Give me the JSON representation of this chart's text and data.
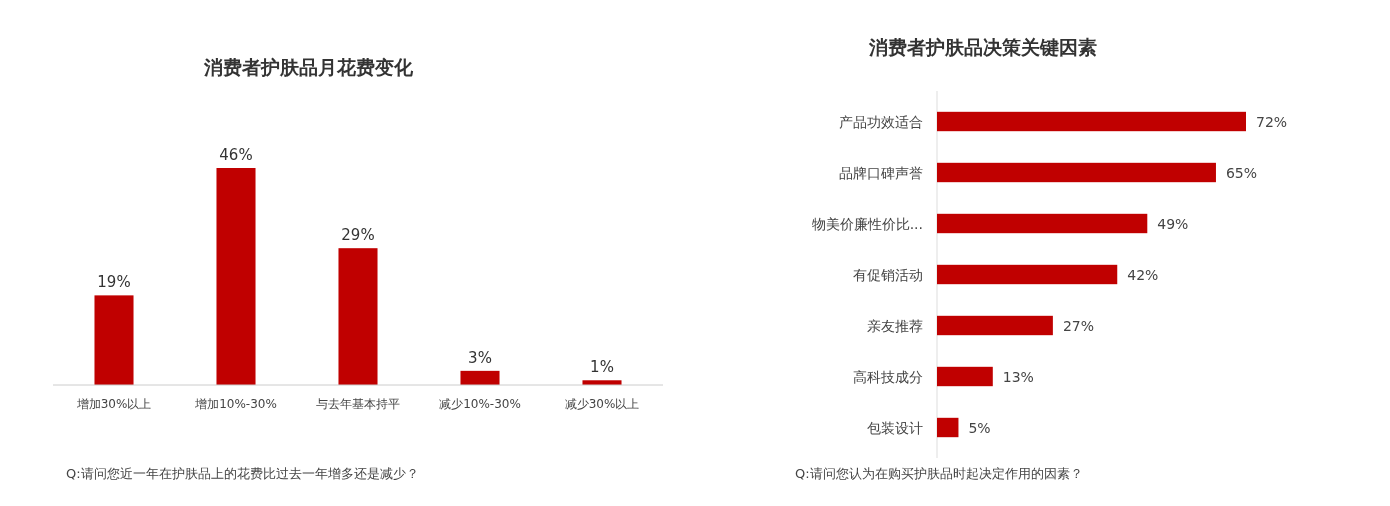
{
  "chart_data": [
    {
      "type": "bar",
      "title": "消费者护肤品月花费变化",
      "categories": [
        "增加30%以上",
        "增加10%-30%",
        "与去年基本持平",
        "减少10%-30%",
        "减少30%以上"
      ],
      "values": [
        19,
        46,
        29,
        3,
        1
      ],
      "value_labels": [
        "19%",
        "46%",
        "29%",
        "3%",
        "1%"
      ],
      "color": "#c00000",
      "tick_labels": "x",
      "annotations": [
        "Q:请问您近一年在护肤品上的花费比过去一年增多还是减少？"
      ]
    },
    {
      "type": "bar",
      "orientation": "horizontal",
      "title": "消费者护肤品决策关键因素",
      "categories": [
        "产品功效适合",
        "品牌口碑声誉",
        "物美价廉性价比...",
        "有促销活动",
        "亲友推荐",
        "高科技成分",
        "包装设计"
      ],
      "values": [
        72,
        65,
        49,
        42,
        27,
        13,
        5
      ],
      "value_labels": [
        "72%",
        "65%",
        "49%",
        "42%",
        "27%",
        "13%",
        "5%"
      ],
      "color": "#c00000",
      "tick_labels": "y",
      "annotations": [
        "Q:请问您认为在购买护肤品时起决定作用的因素？"
      ]
    }
  ]
}
